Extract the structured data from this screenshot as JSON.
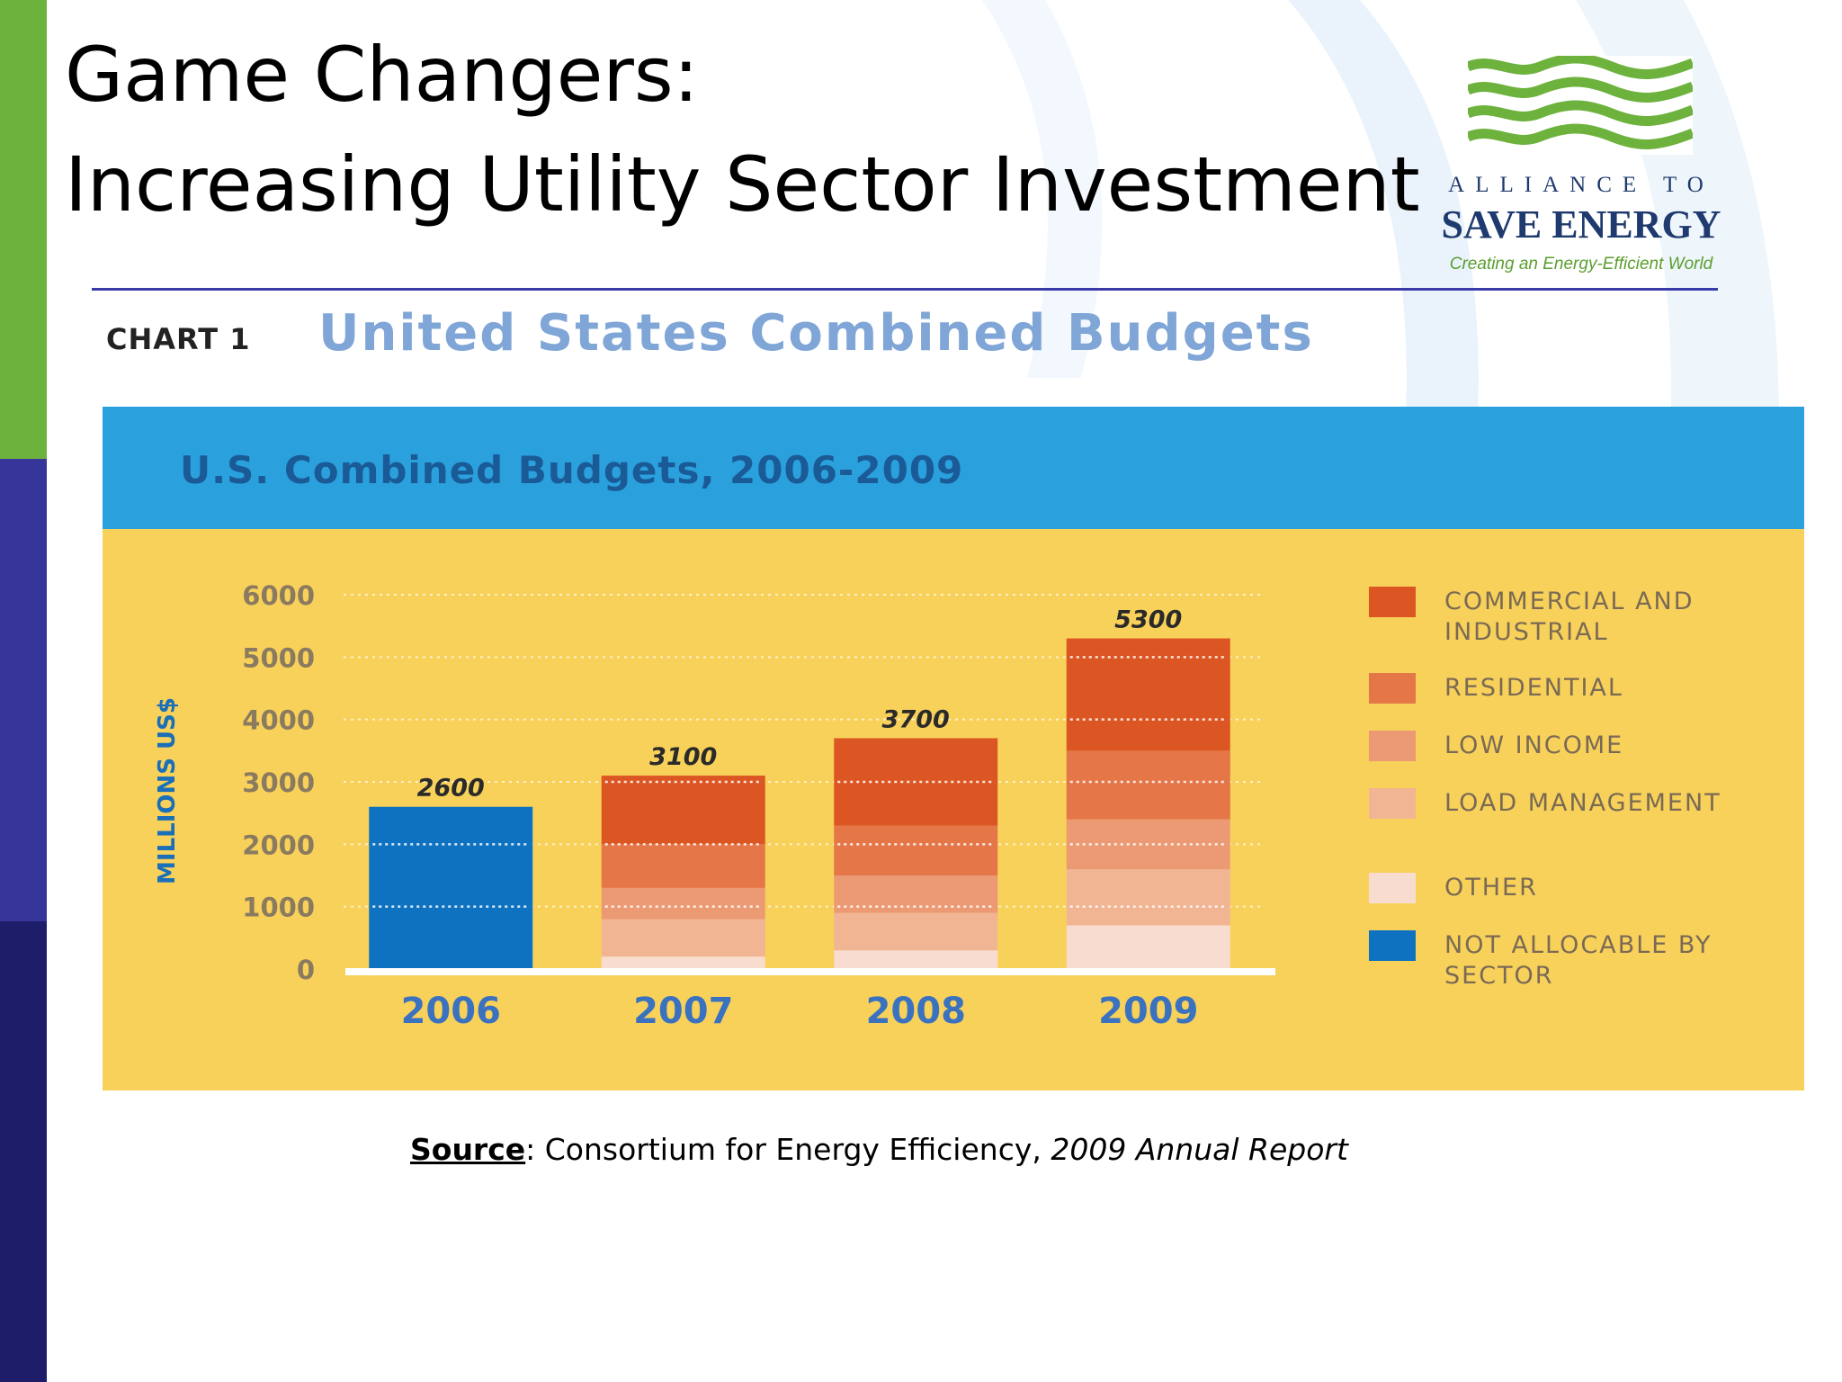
{
  "slide": {
    "title_line1": "Game Changers:",
    "title_line2": "Increasing Utility Sector Investment"
  },
  "logo": {
    "line1": "ALLIANCE TO",
    "line2": "SAVE ENERGY",
    "tagline": "Creating an Energy-Efficient World"
  },
  "chart_header": {
    "label": "CHART 1",
    "heading": "United States Combined Budgets"
  },
  "chart_data": {
    "type": "bar",
    "stacked": true,
    "title": "U.S. Combined Budgets, 2006-2009",
    "xlabel": "",
    "ylabel": "MILLIONS US$",
    "ylim": [
      0,
      6000
    ],
    "yticks": [
      0,
      1000,
      2000,
      3000,
      4000,
      5000,
      6000
    ],
    "yticks_labels": [
      "0",
      "1000",
      "2000",
      "3000",
      "4000",
      "5000",
      "6000"
    ],
    "categories": [
      "2006",
      "2007",
      "2008",
      "2009"
    ],
    "totals": [
      "2600",
      "3100",
      "3700",
      "5300"
    ],
    "series": [
      {
        "name": "OTHER",
        "values": [
          0,
          200,
          300,
          700
        ],
        "color": "#f7dccf"
      },
      {
        "name": "LOAD MANAGEMENT",
        "values": [
          0,
          600,
          600,
          900
        ],
        "color": "#f1b593"
      },
      {
        "name": "LOW INCOME",
        "values": [
          0,
          500,
          600,
          800
        ],
        "color": "#ec9a74"
      },
      {
        "name": "RESIDENTIAL",
        "values": [
          0,
          700,
          800,
          1100
        ],
        "color": "#e47648"
      },
      {
        "name": "COMMERCIAL AND INDUSTRIAL",
        "values": [
          0,
          1100,
          1400,
          1800
        ],
        "color": "#dc5624"
      },
      {
        "name": "NOT ALLOCABLE BY SECTOR",
        "values": [
          2600,
          0,
          0,
          0
        ],
        "color": "#0e72c0"
      }
    ],
    "legend": [
      {
        "label": "COMMERCIAL AND INDUSTRIAL",
        "color": "#dc5624"
      },
      {
        "label": "RESIDENTIAL",
        "color": "#e47648"
      },
      {
        "label": "LOW INCOME",
        "color": "#ec9a74"
      },
      {
        "label": "LOAD MANAGEMENT",
        "color": "#f1b593"
      },
      {
        "label": "OTHER",
        "color": "#f7dccf"
      },
      {
        "label": "NOT ALLOCABLE BY SECTOR",
        "color": "#0e72c0"
      }
    ],
    "legend_position": "right",
    "grid": true
  },
  "source": {
    "label": "Source",
    "text": ": Consortium for Energy Efficiency, ",
    "italic": "2009 Annual Report"
  },
  "colors": {
    "sidebar_green": "#6eb23e",
    "sidebar_indigo": "#36369a",
    "sidebar_navy": "#1d1d6a",
    "band_blue": "#2aa0dc",
    "panel_yellow": "#f8d15a"
  }
}
